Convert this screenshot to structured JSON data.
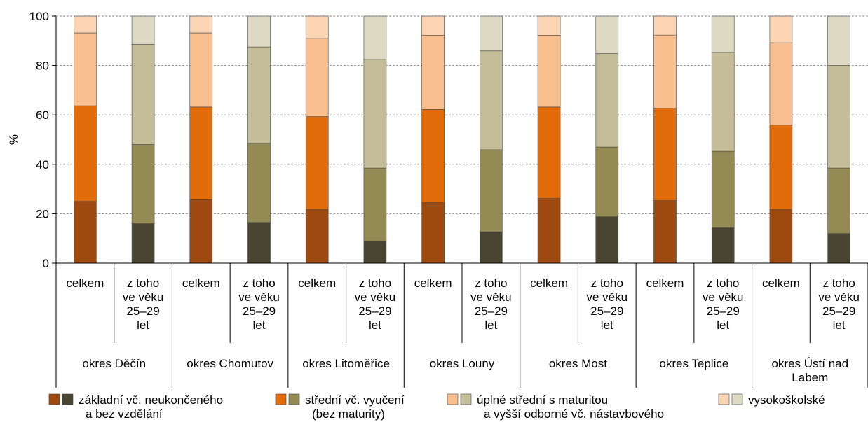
{
  "chart_data": {
    "type": "bar",
    "stacked": true,
    "ylabel": "%",
    "ylim": [
      0,
      100
    ],
    "yticks": [
      0,
      20,
      40,
      60,
      80,
      100
    ],
    "grid": true,
    "legend_position": "bottom",
    "group_labels": [
      "okres Děčín",
      "okres Chomutov",
      "okres Litoměřice",
      "okres Louny",
      "okres Most",
      "okres Teplice",
      "okres Ústí nad Labem"
    ],
    "sub_labels": [
      "celkem",
      "z toho ve věku 25–29 let"
    ],
    "sub_label_lines": [
      [
        "celkem"
      ],
      [
        "z toho",
        "ve věku",
        "25–29",
        "let"
      ]
    ],
    "categories": [
      "okres Děčín – celkem",
      "okres Děčín – z toho ve věku 25–29 let",
      "okres Chomutov – celkem",
      "okres Chomutov – z toho ve věku 25–29 let",
      "okres Litoměřice – celkem",
      "okres Litoměřice – z toho ve věku 25–29 let",
      "okres Louny – celkem",
      "okres Louny – z toho ve věku 25–29 let",
      "okres Most – celkem",
      "okres Most – z toho ve věku 25–29 let",
      "okres Teplice – celkem",
      "okres Teplice – z toho ve věku 25–29 let",
      "okres Ústí nad Labem – celkem",
      "okres Ústí nad Labem – z toho ve věku 25–29 let"
    ],
    "series": [
      {
        "name": "základní vč. neukončeného a bez vzdělání",
        "colors": [
          "#9E4A10",
          "#4A4530"
        ],
        "values": [
          25.0,
          16.0,
          25.7,
          16.5,
          21.8,
          9.0,
          24.5,
          12.7,
          26.2,
          18.8,
          25.3,
          14.3,
          21.8,
          12.0
        ]
      },
      {
        "name": "střední vč. vyučení (bez maturity)",
        "colors": [
          "#E36C0A",
          "#948A54"
        ],
        "values": [
          38.7,
          32.0,
          37.5,
          32.0,
          37.5,
          29.5,
          37.7,
          33.2,
          37.0,
          28.2,
          37.5,
          31.0,
          34.2,
          26.5
        ]
      },
      {
        "name": "úplné střední s maturitou a vyšší odborné vč. nástavbového",
        "colors": [
          "#FABF8F",
          "#C4BD97"
        ],
        "values": [
          29.5,
          40.5,
          30.0,
          39.0,
          31.7,
          44.0,
          30.0,
          40.0,
          29.0,
          37.8,
          29.5,
          40.0,
          33.2,
          41.5
        ]
      },
      {
        "name": "vysokoškolské",
        "colors": [
          "#FCD5B4",
          "#DDD9C3"
        ],
        "values": [
          6.8,
          11.5,
          6.8,
          12.5,
          9.0,
          17.5,
          7.8,
          14.1,
          7.8,
          15.2,
          7.7,
          14.7,
          10.8,
          20.0
        ]
      }
    ],
    "legend": [
      {
        "lines": [
          "základní vč. neukončeného",
          "a bez vzdělání"
        ],
        "colors": [
          "#9E4A10",
          "#4A4530"
        ]
      },
      {
        "lines": [
          "střední vč. vyučení",
          "(bez maturity)"
        ],
        "colors": [
          "#E36C0A",
          "#948A54"
        ]
      },
      {
        "lines": [
          "úplné střední s maturitou",
          "a vyšší odborné vč. nástavbového"
        ],
        "colors": [
          "#FABF8F",
          "#C4BD97"
        ]
      },
      {
        "lines": [
          "vysokoškolské"
        ],
        "colors": [
          "#FCD5B4",
          "#DDD9C3"
        ]
      }
    ]
  }
}
